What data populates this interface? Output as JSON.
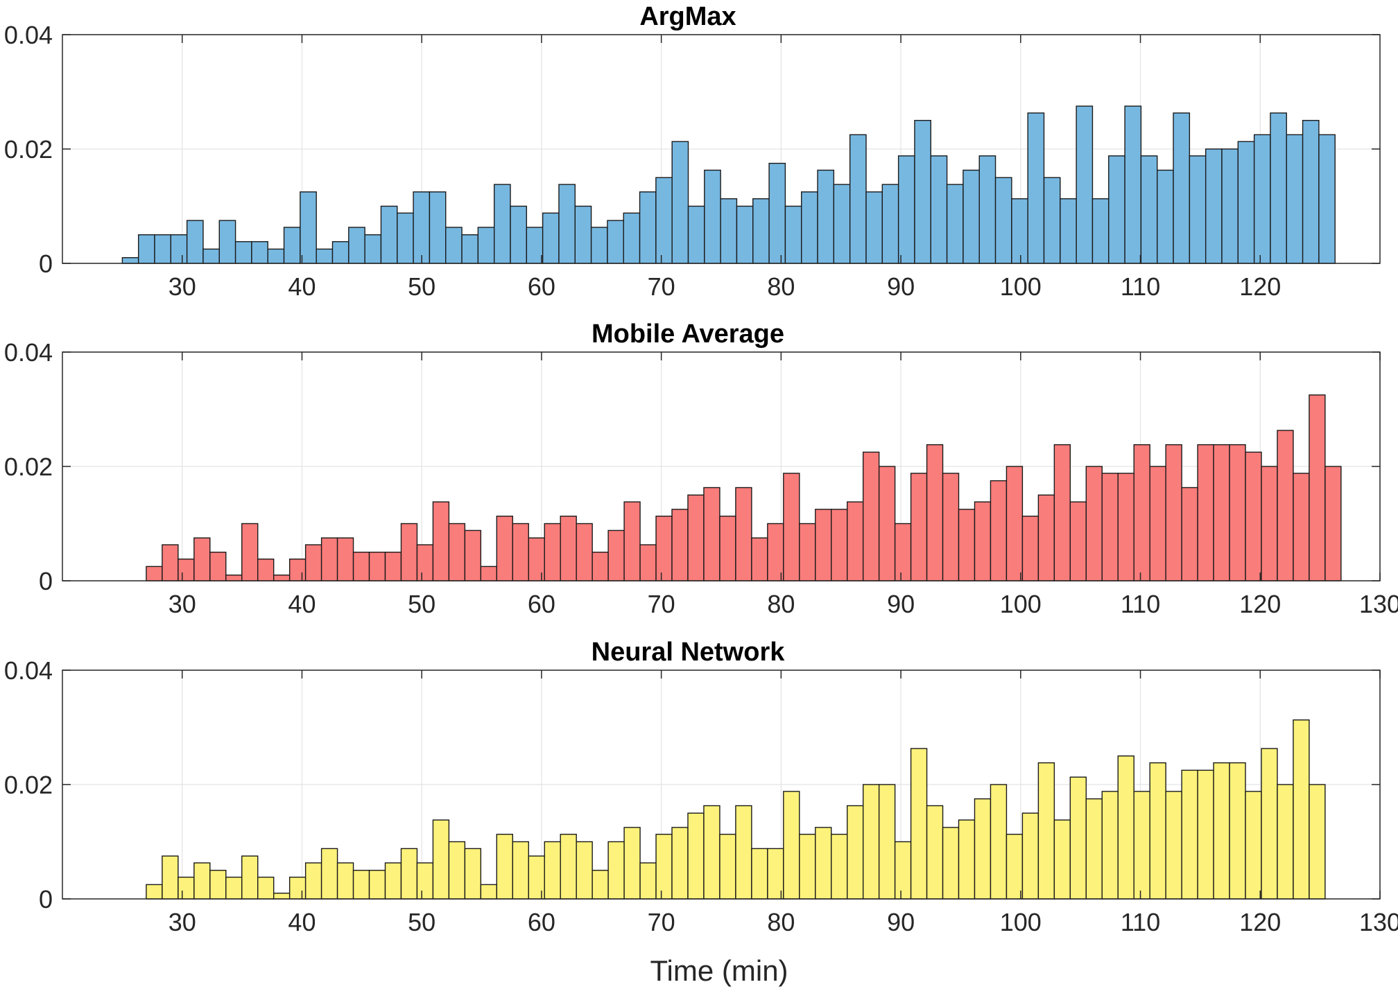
{
  "figure": {
    "xlabel": "Time (min)"
  },
  "chart_data": [
    {
      "type": "bar",
      "title": "ArgMax",
      "color": "#77b8e1",
      "bin_width": 1.35,
      "x_start": 25.0,
      "ylim": [
        0,
        0.04
      ],
      "yticks": [
        "0",
        "0.02",
        "0.04"
      ],
      "xlim": [
        20,
        130
      ],
      "xticks": [
        "30",
        "40",
        "50",
        "60",
        "70",
        "80",
        "90",
        "100",
        "110",
        "120"
      ],
      "grid": true,
      "values": [
        0.001,
        0.005,
        0.005,
        0.005,
        0.0075,
        0.0025,
        0.0075,
        0.0038,
        0.0038,
        0.0025,
        0.0063,
        0.0125,
        0.0025,
        0.0038,
        0.0063,
        0.005,
        0.01,
        0.0088,
        0.0125,
        0.0125,
        0.0063,
        0.005,
        0.0063,
        0.0138,
        0.01,
        0.0063,
        0.0088,
        0.0138,
        0.01,
        0.0063,
        0.0075,
        0.0088,
        0.0125,
        0.015,
        0.0213,
        0.01,
        0.0163,
        0.0113,
        0.01,
        0.0113,
        0.0175,
        0.01,
        0.0125,
        0.0163,
        0.0138,
        0.0225,
        0.0125,
        0.0138,
        0.0188,
        0.025,
        0.0188,
        0.0138,
        0.0163,
        0.0188,
        0.015,
        0.0113,
        0.0263,
        0.015,
        0.0113,
        0.0275,
        0.0113,
        0.0188,
        0.0275,
        0.0188,
        0.0163,
        0.0263,
        0.0188,
        0.02,
        0.02,
        0.0213,
        0.0225,
        0.0263,
        0.0225,
        0.025,
        0.0225
      ]
    },
    {
      "type": "bar",
      "title": "Mobile Average",
      "color": "#f97d7b",
      "bin_width": 1.33,
      "x_start": 27.0,
      "ylim": [
        0,
        0.04
      ],
      "yticks": [
        "0",
        "0.02",
        "0.04"
      ],
      "xlim": [
        20,
        130
      ],
      "xticks": [
        "30",
        "40",
        "50",
        "60",
        "70",
        "80",
        "90",
        "100",
        "110",
        "120",
        "130"
      ],
      "grid": true,
      "values": [
        0.0025,
        0.0063,
        0.0038,
        0.0075,
        0.005,
        0.001,
        0.01,
        0.0038,
        0.001,
        0.0038,
        0.0063,
        0.0075,
        0.0075,
        0.005,
        0.005,
        0.005,
        0.01,
        0.0063,
        0.0138,
        0.01,
        0.0088,
        0.0025,
        0.0113,
        0.01,
        0.0075,
        0.01,
        0.0113,
        0.01,
        0.005,
        0.0088,
        0.0138,
        0.0063,
        0.0113,
        0.0125,
        0.015,
        0.0163,
        0.0113,
        0.0163,
        0.0075,
        0.01,
        0.0188,
        0.01,
        0.0125,
        0.0125,
        0.0138,
        0.0225,
        0.02,
        0.01,
        0.0188,
        0.0238,
        0.0188,
        0.0125,
        0.0138,
        0.0175,
        0.02,
        0.0113,
        0.015,
        0.0238,
        0.0138,
        0.02,
        0.0188,
        0.0188,
        0.0238,
        0.02,
        0.0238,
        0.0163,
        0.0238,
        0.0238,
        0.0238,
        0.0225,
        0.02,
        0.0263,
        0.0188,
        0.0325,
        0.02
      ]
    },
    {
      "type": "bar",
      "title": "Neural Network",
      "color": "#fdf27b",
      "bin_width": 1.33,
      "x_start": 27.0,
      "ylim": [
        0,
        0.04
      ],
      "yticks": [
        "0",
        "0.02",
        "0.04"
      ],
      "xlim": [
        20,
        130
      ],
      "xticks": [
        "30",
        "40",
        "50",
        "60",
        "70",
        "80",
        "90",
        "100",
        "110",
        "120",
        "130"
      ],
      "grid": true,
      "values": [
        0.0025,
        0.0075,
        0.0038,
        0.0063,
        0.005,
        0.0038,
        0.0075,
        0.0038,
        0.001,
        0.0038,
        0.0063,
        0.0088,
        0.0063,
        0.005,
        0.005,
        0.0063,
        0.0088,
        0.0063,
        0.0138,
        0.01,
        0.0088,
        0.0025,
        0.0113,
        0.01,
        0.0075,
        0.01,
        0.0113,
        0.01,
        0.005,
        0.01,
        0.0125,
        0.0063,
        0.0113,
        0.0125,
        0.015,
        0.0163,
        0.0113,
        0.0163,
        0.0088,
        0.0088,
        0.0188,
        0.0113,
        0.0125,
        0.0113,
        0.0163,
        0.02,
        0.02,
        0.01,
        0.0263,
        0.0163,
        0.0125,
        0.0138,
        0.0175,
        0.02,
        0.0113,
        0.015,
        0.0238,
        0.0138,
        0.0213,
        0.0175,
        0.0188,
        0.025,
        0.0188,
        0.0238,
        0.0188,
        0.0225,
        0.0225,
        0.0238,
        0.0238,
        0.0188,
        0.0263,
        0.02,
        0.0313,
        0.02
      ]
    }
  ]
}
